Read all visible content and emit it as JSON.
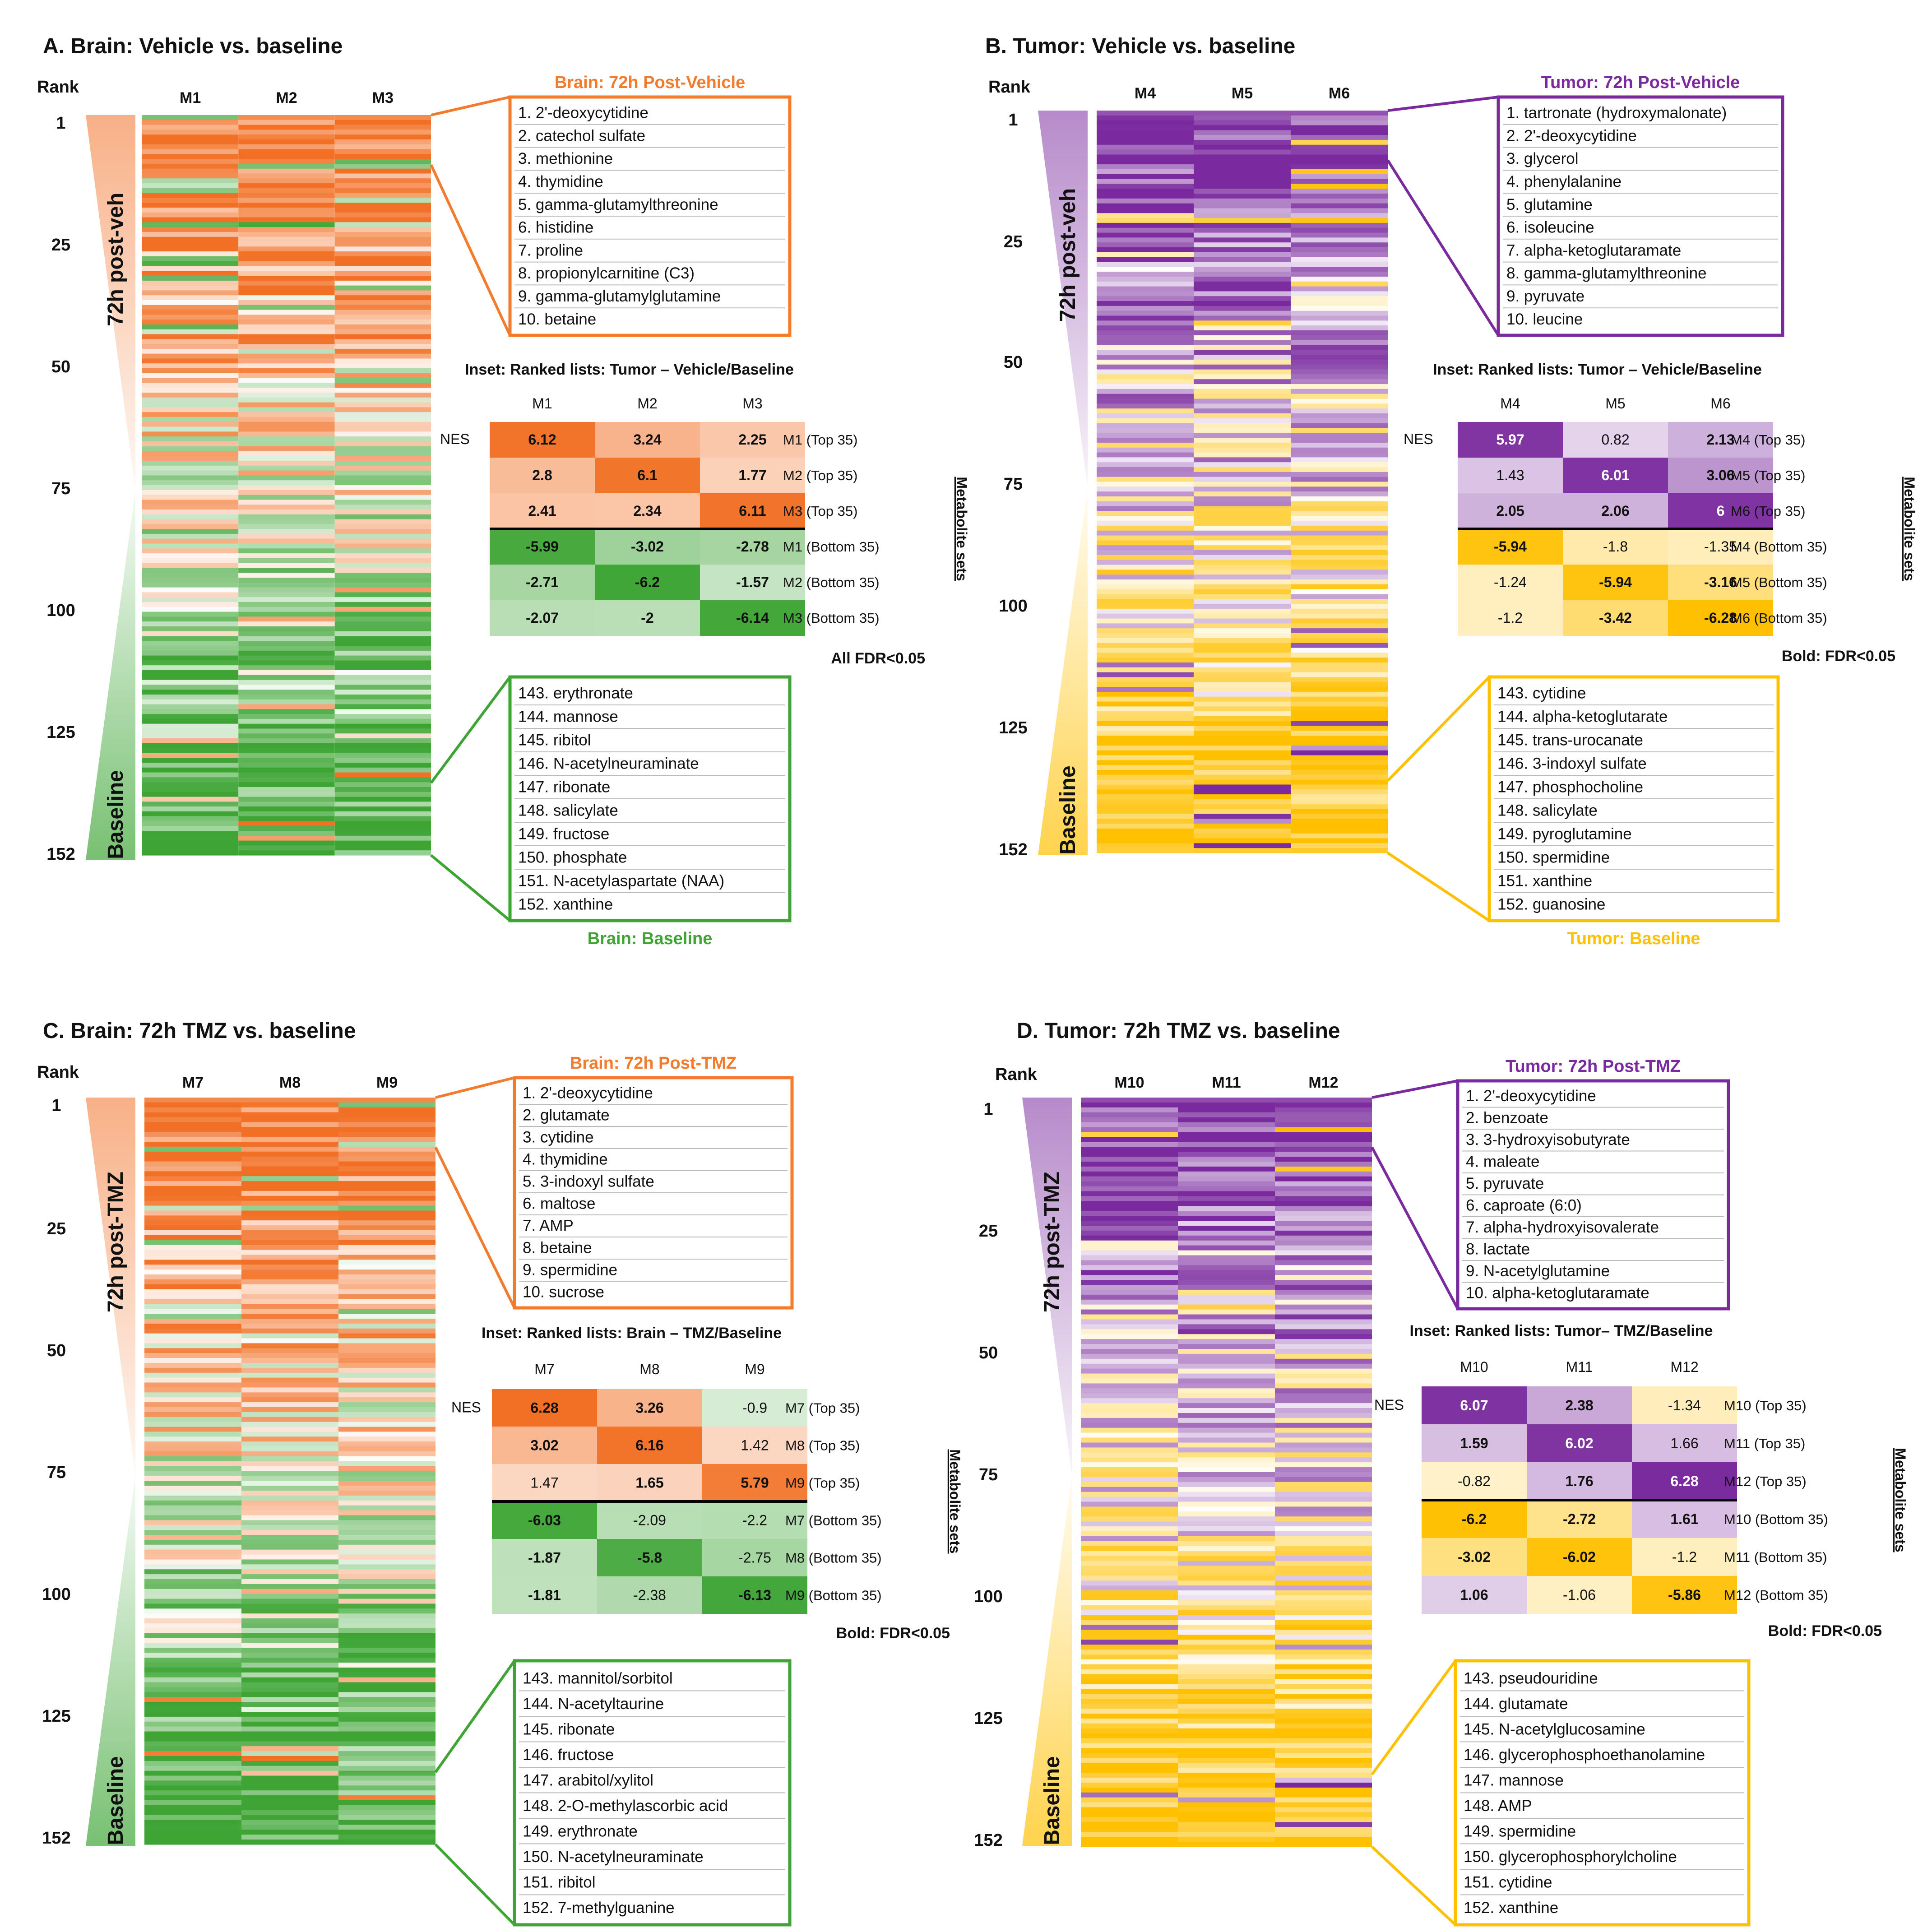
{
  "colors": {
    "orange": "#F47B2C",
    "orange_dark": "#F26A1B",
    "green": "#3EA535",
    "green_dark": "#2E8B2A",
    "purple": "#7A2A9E",
    "purple_mid": "#9F64C2",
    "yellow": "#FFC000",
    "yellow_light": "#FFE699"
  },
  "panels": [
    {
      "id": "A",
      "title": "A. Brain: Vehicle vs. baseline",
      "palette": "brain",
      "rank_header": "Rank",
      "rank_ticks": [
        "1",
        "25",
        "50",
        "75",
        "100",
        "125",
        "152"
      ],
      "columns": [
        "M1",
        "M2",
        "M3"
      ],
      "wedge_top_label": "72h post-veh",
      "wedge_bottom_label": "Baseline",
      "top_box": {
        "title": "Brain: 72h Post-Vehicle",
        "items": [
          "1. 2'-deoxycytidine",
          "2. catechol sulfate",
          "3. methionine",
          "4. thymidine",
          "5. gamma-glutamylthreonine",
          "6. histidine",
          "7. proline",
          "8. propionylcarnitine (C3)",
          "9. gamma-glutamylglutamine",
          "10. betaine"
        ]
      },
      "bottom_box": {
        "title": "Brain: Baseline",
        "items": [
          "143. erythronate",
          "144. mannose",
          "145. ribitol",
          "146. N-acetylneuraminate",
          "147. ribonate",
          "148. salicylate",
          "149. fructose",
          "150. phosphate",
          "151. N-acetylaspartate (NAA)",
          "152. xanthine"
        ]
      },
      "inset": {
        "title": "Inset: Ranked lists: Tumor – Vehicle/Baseline",
        "nes_label": "NES",
        "cols": [
          "M1",
          "M2",
          "M3"
        ],
        "rows": [
          "M1 (Top 35)",
          "M2 (Top 35)",
          "M3 (Top 35)",
          "M1 (Bottom 35)",
          "M2 (Bottom 35)",
          "M3 (Bottom 35)"
        ],
        "values": [
          [
            6.12,
            3.24,
            2.25
          ],
          [
            2.8,
            6.1,
            1.77
          ],
          [
            2.41,
            2.34,
            6.11
          ],
          [
            -5.99,
            -3.02,
            -2.78
          ],
          [
            -2.71,
            -6.2,
            -1.57
          ],
          [
            -2.07,
            -2,
            -6.14
          ]
        ],
        "display": [
          [
            "6.12",
            "3.24",
            "2.25"
          ],
          [
            "2.8",
            "6.1",
            "1.77"
          ],
          [
            "2.41",
            "2.34",
            "6.11"
          ],
          [
            "-5.99",
            "-3.02",
            "-2.78"
          ],
          [
            "-2.71",
            "-6.2",
            "-1.57"
          ],
          [
            "-2.07",
            "-2",
            "-6.14"
          ]
        ],
        "bold": [
          [
            true,
            true,
            true
          ],
          [
            true,
            true,
            true
          ],
          [
            true,
            true,
            true
          ],
          [
            true,
            true,
            true
          ],
          [
            true,
            true,
            true
          ],
          [
            true,
            true,
            true
          ]
        ],
        "side_label": "Metabolite sets",
        "footnote": "All FDR<0.05"
      }
    },
    {
      "id": "B",
      "title": "B. Tumor: Vehicle vs. baseline",
      "palette": "tumor",
      "rank_header": "Rank",
      "rank_ticks": [
        "1",
        "25",
        "50",
        "75",
        "100",
        "125",
        "152"
      ],
      "columns": [
        "M4",
        "M5",
        "M6"
      ],
      "wedge_top_label": "72h post-veh",
      "wedge_bottom_label": "Baseline",
      "top_box": {
        "title": "Tumor: 72h Post-Vehicle",
        "items": [
          "1. tartronate (hydroxymalonate)",
          "2. 2'-deoxycytidine",
          "3. glycerol",
          "4. phenylalanine",
          "5. glutamine",
          "6. isoleucine",
          "7. alpha-ketoglutaramate",
          "8. gamma-glutamylthreonine",
          "9. pyruvate",
          "10. leucine"
        ]
      },
      "bottom_box": {
        "title": "Tumor: Baseline",
        "items": [
          "143. cytidine",
          "144. alpha-ketoglutarate",
          "145. trans-urocanate",
          "146. 3-indoxyl sulfate",
          "147. phosphocholine",
          "148. salicylate",
          "149. pyroglutamine",
          "150. spermidine",
          "151. xanthine",
          "152. guanosine"
        ]
      },
      "inset": {
        "title": "Inset: Ranked lists: Tumor – Vehicle/Baseline",
        "nes_label": "NES",
        "cols": [
          "M4",
          "M5",
          "M6"
        ],
        "rows": [
          "M4 (Top 35)",
          "M5 (Top 35)",
          "M6 (Top 35)",
          "M4 (Bottom 35)",
          "M5 (Bottom 35)",
          "M6 (Bottom 35)"
        ],
        "values": [
          [
            5.97,
            0.82,
            2.13
          ],
          [
            1.43,
            6.01,
            3.06
          ],
          [
            2.05,
            2.06,
            6
          ],
          [
            -5.94,
            -1.8,
            -1.35
          ],
          [
            -1.24,
            -5.94,
            -3.16
          ],
          [
            -1.2,
            -3.42,
            -6.28
          ]
        ],
        "display": [
          [
            "5.97",
            "0.82",
            "2.13"
          ],
          [
            "1.43",
            "6.01",
            "3.06"
          ],
          [
            "2.05",
            "2.06",
            "6"
          ],
          [
            "-5.94",
            "-1.8",
            "-1.35"
          ],
          [
            "-1.24",
            "-5.94",
            "-3.16"
          ],
          [
            "-1.2",
            "-3.42",
            "-6.28"
          ]
        ],
        "bold": [
          [
            true,
            false,
            true
          ],
          [
            false,
            true,
            true
          ],
          [
            true,
            true,
            true
          ],
          [
            true,
            false,
            false
          ],
          [
            false,
            true,
            true
          ],
          [
            false,
            true,
            true
          ]
        ],
        "side_label": "Metabolite sets",
        "footnote": "Bold: FDR<0.05"
      }
    },
    {
      "id": "C",
      "title": "C. Brain: 72h TMZ vs. baseline",
      "palette": "brain",
      "rank_header": "Rank",
      "rank_ticks": [
        "1",
        "25",
        "50",
        "75",
        "100",
        "125",
        "152"
      ],
      "columns": [
        "M7",
        "M8",
        "M9"
      ],
      "wedge_top_label": "72h post-TMZ",
      "wedge_bottom_label": "Baseline",
      "top_box": {
        "title": "Brain: 72h Post-TMZ",
        "items": [
          "1. 2'-deoxycytidine",
          "2. glutamate",
          "3. cytidine",
          "4. thymidine",
          "5. 3-indoxyl sulfate",
          "6. maltose",
          "7. AMP",
          "8. betaine",
          "9. spermidine",
          "10. sucrose"
        ]
      },
      "bottom_box": {
        "title": "Brain: Baseline",
        "items": [
          "143. mannitol/sorbitol",
          "144. N-acetyltaurine",
          "145. ribonate",
          "146. fructose",
          "147. arabitol/xylitol",
          "148. 2-O-methylascorbic acid",
          "149. erythronate",
          "150. N-acetylneuraminate",
          "151. ribitol",
          "152. 7-methylguanine"
        ]
      },
      "inset": {
        "title": "Inset: Ranked lists: Brain – TMZ/Baseline",
        "nes_label": "NES",
        "cols": [
          "M7",
          "M8",
          "M9"
        ],
        "rows": [
          "M7 (Top 35)",
          "M8 (Top 35)",
          "M9 (Top 35)",
          "M7 (Bottom 35)",
          "M8 (Bottom 35)",
          "M9 (Bottom 35)"
        ],
        "values": [
          [
            6.28,
            3.26,
            -0.9
          ],
          [
            3.02,
            6.16,
            1.42
          ],
          [
            1.47,
            1.65,
            5.79
          ],
          [
            -6.03,
            -2.09,
            -2.2
          ],
          [
            -1.87,
            -5.8,
            -2.75
          ],
          [
            -1.81,
            -2.38,
            -6.13
          ]
        ],
        "display": [
          [
            "6.28",
            "3.26",
            "-0.9"
          ],
          [
            "3.02",
            "6.16",
            "1.42"
          ],
          [
            "1.47",
            "1.65",
            "5.79"
          ],
          [
            "-6.03",
            "-2.09",
            "-2.2"
          ],
          [
            "-1.87",
            "-5.8",
            "-2.75"
          ],
          [
            "-1.81",
            "-2.38",
            "-6.13"
          ]
        ],
        "bold": [
          [
            true,
            true,
            false
          ],
          [
            true,
            true,
            false
          ],
          [
            false,
            true,
            true
          ],
          [
            true,
            false,
            false
          ],
          [
            true,
            true,
            false
          ],
          [
            true,
            false,
            true
          ]
        ],
        "side_label": "Metabolite sets",
        "footnote": "Bold: FDR<0.05"
      }
    },
    {
      "id": "D",
      "title": "D. Tumor: 72h TMZ vs. baseline",
      "palette": "tumor",
      "rank_header": "Rank",
      "rank_ticks": [
        "1",
        "25",
        "50",
        "75",
        "100",
        "125",
        "152"
      ],
      "columns": [
        "M10",
        "M11",
        "M12"
      ],
      "wedge_top_label": "72h post-TMZ",
      "wedge_bottom_label": "Baseline",
      "top_box": {
        "title": "Tumor: 72h Post-TMZ",
        "items": [
          "1. 2'-deoxycytidine",
          "2. benzoate",
          "3. 3-hydroxyisobutyrate",
          "4. maleate",
          "5. pyruvate",
          "6. caproate (6:0)",
          "7. alpha-hydroxyisovalerate",
          "8. lactate",
          "9. N-acetylglutamine",
          "10. alpha-ketoglutaramate"
        ]
      },
      "bottom_box": {
        "title": "Tumor: Baseline",
        "items": [
          "143. pseudouridine",
          "144. glutamate",
          "145. N-acetylglucosamine",
          "146. glycerophosphoethanolamine",
          "147. mannose",
          "148. AMP",
          "149. spermidine",
          "150. glycerophosphorylcholine",
          "151. cytidine",
          "152. xanthine"
        ]
      },
      "inset": {
        "title": "Inset: Ranked lists: Tumor– TMZ/Baseline",
        "nes_label": "NES",
        "cols": [
          "M10",
          "M11",
          "M12"
        ],
        "rows": [
          "M10 (Top 35)",
          "M11 (Top 35)",
          "M12 (Top 35)",
          "M10 (Bottom 35)",
          "M11 (Bottom 35)",
          "M12 (Bottom 35)"
        ],
        "values": [
          [
            6.07,
            2.38,
            -1.34
          ],
          [
            1.59,
            6.02,
            1.66
          ],
          [
            -0.82,
            1.76,
            6.28
          ],
          [
            -6.2,
            -2.72,
            1.61
          ],
          [
            -3.02,
            -6.02,
            -1.2
          ],
          [
            1.06,
            -1.06,
            -5.86
          ]
        ],
        "display": [
          [
            "6.07",
            "2.38",
            "-1.34"
          ],
          [
            "1.59",
            "6.02",
            "1.66"
          ],
          [
            "-0.82",
            "1.76",
            "6.28"
          ],
          [
            "-6.2",
            "-2.72",
            "1.61"
          ],
          [
            "-3.02",
            "-6.02",
            "-1.2"
          ],
          [
            "1.06",
            "-1.06",
            "-5.86"
          ]
        ],
        "bold": [
          [
            true,
            true,
            false
          ],
          [
            true,
            true,
            false
          ],
          [
            false,
            true,
            true
          ],
          [
            true,
            true,
            true
          ],
          [
            true,
            true,
            false
          ],
          [
            true,
            false,
            true
          ]
        ],
        "side_label": "Metabolite sets",
        "footnote": "Bold: FDR<0.05"
      }
    }
  ],
  "chart_data": [
    {
      "type": "heatmap",
      "title": "A. Brain: Vehicle vs. baseline",
      "ylabel": "Rank",
      "y_range": [
        1,
        152
      ],
      "x": [
        "M1",
        "M2",
        "M3"
      ],
      "scale": "rank 1 = 72h post-veh (orange), rank 152 = Baseline (green)"
    },
    {
      "type": "heatmap",
      "title": "B. Tumor: Vehicle vs. baseline",
      "ylabel": "Rank",
      "y_range": [
        1,
        152
      ],
      "x": [
        "M4",
        "M5",
        "M6"
      ],
      "scale": "rank 1 = 72h post-veh (purple), rank 152 = Baseline (yellow)"
    },
    {
      "type": "heatmap",
      "title": "C. Brain: 72h TMZ vs. baseline",
      "ylabel": "Rank",
      "y_range": [
        1,
        152
      ],
      "x": [
        "M7",
        "M8",
        "M9"
      ],
      "scale": "rank 1 = 72h post-TMZ (orange), rank 152 = Baseline (green)"
    },
    {
      "type": "heatmap",
      "title": "D. Tumor: 72h TMZ vs. baseline",
      "ylabel": "Rank",
      "y_range": [
        1,
        152
      ],
      "x": [
        "M10",
        "M11",
        "M12"
      ],
      "scale": "rank 1 = 72h post-TMZ (purple), rank 152 = Baseline (yellow)"
    }
  ]
}
